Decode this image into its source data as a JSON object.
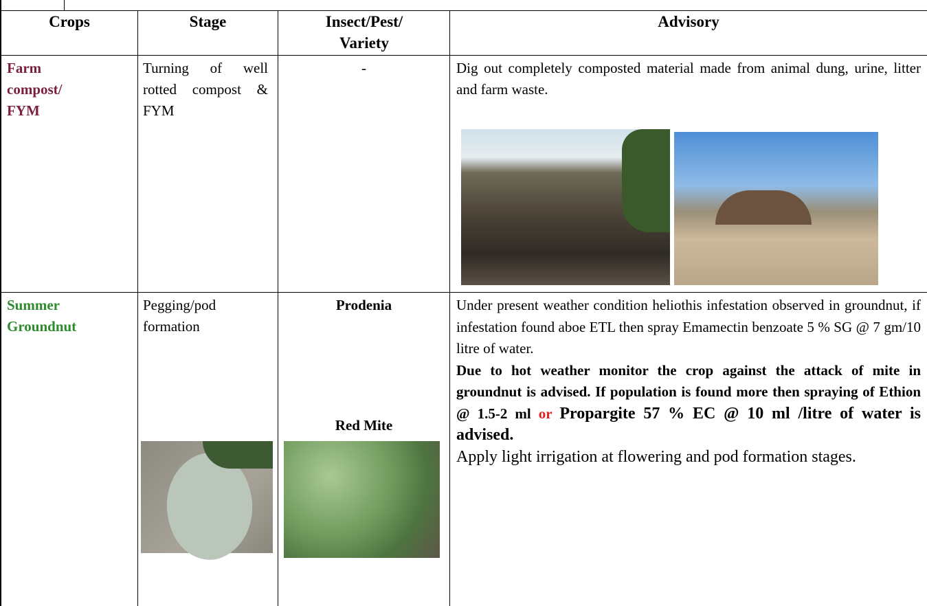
{
  "table": {
    "header": [
      "Crops",
      "Stage",
      "Insect/Pest/ Variety",
      "Advisory"
    ],
    "rows": [
      {
        "crop": "Farm compost/ FYM",
        "stage": "Turning of well rotted compost & FYM",
        "pest": "-",
        "advisory": "Dig out completely composted material made from animal dung, urine, litter and farm waste."
      },
      {
        "crop": "Summer Groundnut",
        "stage": "Pegging/pod formation",
        "pests": [
          "Prodenia",
          "Red Mite"
        ],
        "advisory": [
          "Under present weather condition heliothis infestation observed in groundnut, if infestation found aboe ETL then spray Emamectin benzoate 5 % SG @ 7 gm/10 litre of water.",
          "Due to hot weather monitor the crop against the attack of  mite in groundnut is advised. If population is found more then spraying of Ethion @ 1.5-2 ml",
          "or",
          "Propargite 57 % EC @ 10 ml /litre of water is advised.",
          "Apply light irrigation at flowering and pod formation stages."
        ]
      }
    ]
  }
}
